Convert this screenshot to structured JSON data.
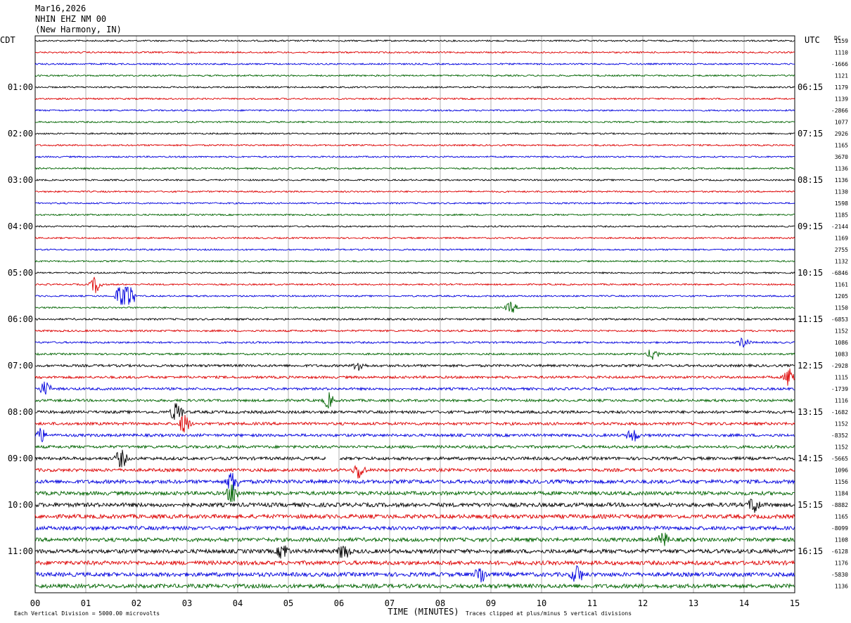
{
  "header": {
    "date": "Mar16,2026",
    "station": "NHIN EHZ NM 00",
    "location": "(New Harmony, IN)"
  },
  "left_axis_title": "CDT",
  "right_axis_title": "UTC",
  "dc_title": "DC",
  "footer": {
    "scale_note": "Each Vertical Division = 5000.00 microvolts",
    "clip_note": "Traces clipped at plus/minus 5 vertical divisions"
  },
  "colors": {
    "trace_cycle": [
      "#000000",
      "#dd0000",
      "#0000dd",
      "#006400"
    ],
    "grid": "#000000",
    "background": "#ffffff"
  },
  "chart_data": {
    "type": "line",
    "xlabel": "TIME (MINUTES)",
    "xlim": [
      0,
      15
    ],
    "x_ticks": [
      "00",
      "01",
      "02",
      "03",
      "04",
      "05",
      "06",
      "07",
      "08",
      "09",
      "10",
      "11",
      "12",
      "13",
      "14",
      "15"
    ],
    "grid": true,
    "rows_per_hour": 4,
    "left_hour_labels": [
      "01:00",
      "02:00",
      "03:00",
      "04:00",
      "05:00",
      "06:00",
      "07:00",
      "08:00",
      "09:00",
      "10:00",
      "11:00"
    ],
    "right_hour_labels": [
      "06:15",
      "07:15",
      "08:15",
      "09:15",
      "10:15",
      "11:15",
      "12:15",
      "13:15",
      "14:15",
      "15:15",
      "16:15"
    ],
    "dc_offsets": [
      "1159",
      "1110",
      "-1666",
      "1121",
      "1179",
      "1139",
      "-2866",
      "1077",
      "2926",
      "1165",
      "3670",
      "1136",
      "1136",
      "1130",
      "1598",
      "1185",
      "-2144",
      "1169",
      "2755",
      "1132",
      "-6846",
      "1161",
      "1205",
      "1150",
      "-6853",
      "1152",
      "1086",
      "1083",
      "-2928",
      "1115",
      "-1739",
      "1116",
      "-1682",
      "1152",
      "-8352",
      "1152",
      "-5665",
      "1096",
      "1156",
      "1184",
      "-8882",
      "1165",
      "-8099",
      "1108",
      "-6128",
      "1176",
      "-5830",
      "1136"
    ],
    "row_noise": [
      0.5,
      0.5,
      0.5,
      0.5,
      0.5,
      0.5,
      0.5,
      0.5,
      0.5,
      0.5,
      0.5,
      0.5,
      0.5,
      0.5,
      0.5,
      0.5,
      0.5,
      0.5,
      0.5,
      0.5,
      0.5,
      0.5,
      0.5,
      0.5,
      0.6,
      0.6,
      0.6,
      0.6,
      0.8,
      0.8,
      0.8,
      0.8,
      0.9,
      0.9,
      0.9,
      0.9,
      1.0,
      1.0,
      1.2,
      1.2,
      1.3,
      1.3,
      1.2,
      1.2,
      1.3,
      1.3,
      1.3,
      1.3
    ],
    "events": [
      {
        "row": 21,
        "minute": 1.2,
        "amplitude": 1.2
      },
      {
        "row": 22,
        "minute": 1.7,
        "amplitude": 2.0
      },
      {
        "row": 22,
        "minute": 1.85,
        "amplitude": 2.5
      },
      {
        "row": 23,
        "minute": 9.4,
        "amplitude": 0.8
      },
      {
        "row": 26,
        "minute": 14.0,
        "amplitude": 0.8
      },
      {
        "row": 27,
        "minute": 12.2,
        "amplitude": 0.9
      },
      {
        "row": 28,
        "minute": 6.4,
        "amplitude": 0.8
      },
      {
        "row": 29,
        "minute": 14.9,
        "amplitude": 1.4
      },
      {
        "row": 30,
        "minute": 0.2,
        "amplitude": 1.0
      },
      {
        "row": 31,
        "minute": 5.8,
        "amplitude": 1.0
      },
      {
        "row": 32,
        "minute": 2.8,
        "amplitude": 1.8
      },
      {
        "row": 33,
        "minute": 2.95,
        "amplitude": 1.5
      },
      {
        "row": 34,
        "minute": 0.1,
        "amplitude": 1.0
      },
      {
        "row": 34,
        "minute": 11.8,
        "amplitude": 1.0
      },
      {
        "row": 36,
        "minute": 1.7,
        "amplitude": 1.4
      },
      {
        "row": 37,
        "minute": 6.4,
        "amplitude": 1.3
      },
      {
        "row": 38,
        "minute": 3.9,
        "amplitude": 1.8
      },
      {
        "row": 39,
        "minute": 3.9,
        "amplitude": 1.6
      },
      {
        "row": 40,
        "minute": 14.2,
        "amplitude": 1.2
      },
      {
        "row": 43,
        "minute": 12.4,
        "amplitude": 1.0
      },
      {
        "row": 44,
        "minute": 4.9,
        "amplitude": 1.2
      },
      {
        "row": 44,
        "minute": 6.1,
        "amplitude": 1.2
      },
      {
        "row": 46,
        "minute": 8.8,
        "amplitude": 1.3
      },
      {
        "row": 46,
        "minute": 10.7,
        "amplitude": 1.3
      }
    ],
    "gaps": [
      {
        "row": 36,
        "start_minute": 5.75,
        "end_minute": 6.0
      }
    ]
  }
}
